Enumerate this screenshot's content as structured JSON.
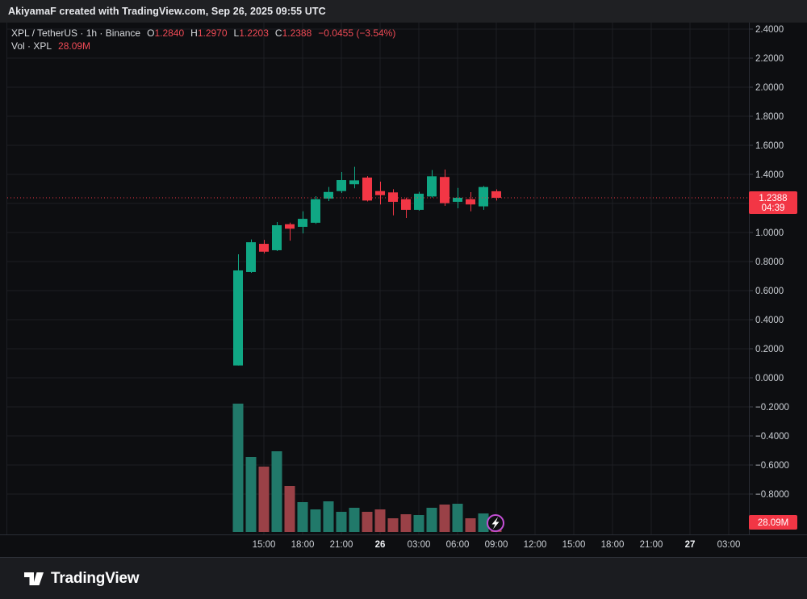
{
  "attribution": "AkiyamaF created with TradingView.com, Sep 26, 2025 09:55 UTC",
  "legend": {
    "line1": {
      "symbol": "XPL / TetherUS · 1h · Binance",
      "pairs": [
        {
          "k": "O",
          "v": "1.2840"
        },
        {
          "k": "H",
          "v": "1.2970"
        },
        {
          "k": "L",
          "v": "1.2203"
        },
        {
          "k": "C",
          "v": "1.2388"
        }
      ],
      "change": "−0.0455 (−3.54%)"
    },
    "line2": {
      "label": "Vol · XPL",
      "value": "28.09M"
    }
  },
  "price_label": {
    "price": "1.2388",
    "countdown": "04:39"
  },
  "volume_label": {
    "value": "28.09M"
  },
  "footer": {
    "brand": "TradingView"
  },
  "colors": {
    "up": "#10a784",
    "down": "#f23645",
    "vol_up": "#21796a",
    "vol_down": "#9a4147",
    "accent_red": "#f23645",
    "grid": "#1d1f24",
    "axis_text": "#ccd0d6",
    "axis_text_bold": "#eef0f4",
    "axis_border": "#2a2d35",
    "tick_mark": "#3a3e48",
    "badge_ring": "#c44fd6",
    "bg": "#0d0e11"
  },
  "chart_data": {
    "type": "candlestick+volume",
    "title": "XPL / TetherUS",
    "interval": "1h",
    "exchange": "Binance",
    "last": {
      "o": 1.284,
      "h": 1.297,
      "l": 1.2203,
      "c": 1.2388,
      "change": -0.0455,
      "change_pct": -3.54,
      "volume_m": 28.09,
      "countdown": "04:39"
    },
    "price_axis": {
      "tick_max": 2.4,
      "tick_min": -0.8,
      "tick_step": 0.2,
      "hidden_tick": 1.2,
      "format_decimals": 4
    },
    "time_ticks": [
      {
        "label": "15:00"
      },
      {
        "label": "18:00"
      },
      {
        "label": "21:00"
      },
      {
        "label": "26",
        "bold": true
      },
      {
        "label": "03:00"
      },
      {
        "label": "06:00"
      },
      {
        "label": "09:00"
      },
      {
        "label": "12:00"
      },
      {
        "label": "15:00"
      },
      {
        "label": "18:00"
      },
      {
        "label": "21:00"
      },
      {
        "label": "27",
        "bold": true
      },
      {
        "label": "03:00"
      }
    ],
    "candles": [
      {
        "t": "Sep 25 13:00",
        "o": 0.085,
        "h": 0.85,
        "l": 0.085,
        "c": 0.739,
        "v": 344
      },
      {
        "t": "Sep 25 14:00",
        "o": 0.728,
        "h": 0.952,
        "l": 0.722,
        "c": 0.933,
        "v": 201
      },
      {
        "t": "Sep 25 15:00",
        "o": 0.922,
        "h": 0.949,
        "l": 0.856,
        "c": 0.868,
        "v": 175
      },
      {
        "t": "Sep 25 16:00",
        "o": 0.878,
        "h": 1.072,
        "l": 0.872,
        "c": 1.05,
        "v": 216
      },
      {
        "t": "Sep 25 17:00",
        "o": 1.057,
        "h": 1.068,
        "l": 0.944,
        "c": 1.026,
        "v": 123
      },
      {
        "t": "Sep 25 18:00",
        "o": 1.039,
        "h": 1.146,
        "l": 0.994,
        "c": 1.094,
        "v": 80
      },
      {
        "t": "Sep 25 19:00",
        "o": 1.067,
        "h": 1.25,
        "l": 1.06,
        "c": 1.229,
        "v": 61
      },
      {
        "t": "Sep 25 20:00",
        "o": 1.233,
        "h": 1.313,
        "l": 1.217,
        "c": 1.279,
        "v": 82
      },
      {
        "t": "Sep 25 21:00",
        "o": 1.285,
        "h": 1.417,
        "l": 1.272,
        "c": 1.361,
        "v": 54
      },
      {
        "t": "Sep 25 22:00",
        "o": 1.332,
        "h": 1.452,
        "l": 1.304,
        "c": 1.359,
        "v": 65
      },
      {
        "t": "Sep 25 23:00",
        "o": 1.378,
        "h": 1.388,
        "l": 1.214,
        "c": 1.22,
        "v": 54
      },
      {
        "t": "Sep 26 00:00",
        "o": 1.285,
        "h": 1.35,
        "l": 1.193,
        "c": 1.257,
        "v": 61
      },
      {
        "t": "Sep 26 01:00",
        "o": 1.276,
        "h": 1.298,
        "l": 1.118,
        "c": 1.211,
        "v": 37
      },
      {
        "t": "Sep 26 02:00",
        "o": 1.229,
        "h": 1.24,
        "l": 1.1,
        "c": 1.156,
        "v": 48
      },
      {
        "t": "Sep 26 03:00",
        "o": 1.156,
        "h": 1.28,
        "l": 1.15,
        "c": 1.267,
        "v": 45
      },
      {
        "t": "Sep 26 04:00",
        "o": 1.248,
        "h": 1.43,
        "l": 1.24,
        "c": 1.387,
        "v": 65
      },
      {
        "t": "Sep 26 05:00",
        "o": 1.382,
        "h": 1.433,
        "l": 1.183,
        "c": 1.202,
        "v": 73
      },
      {
        "t": "Sep 26 06:00",
        "o": 1.211,
        "h": 1.307,
        "l": 1.167,
        "c": 1.239,
        "v": 76
      },
      {
        "t": "Sep 26 07:00",
        "o": 1.229,
        "h": 1.278,
        "l": 1.146,
        "c": 1.193,
        "v": 37
      },
      {
        "t": "Sep 26 08:00",
        "o": 1.18,
        "h": 1.32,
        "l": 1.156,
        "c": 1.313,
        "v": 50
      },
      {
        "t": "Sep 26 09:00",
        "o": 1.284,
        "h": 1.297,
        "l": 1.2203,
        "c": 1.2388,
        "v": 28.09
      }
    ],
    "legend_note": "grid on, price scale right, volume anchored bottom, last-price dotted line"
  }
}
